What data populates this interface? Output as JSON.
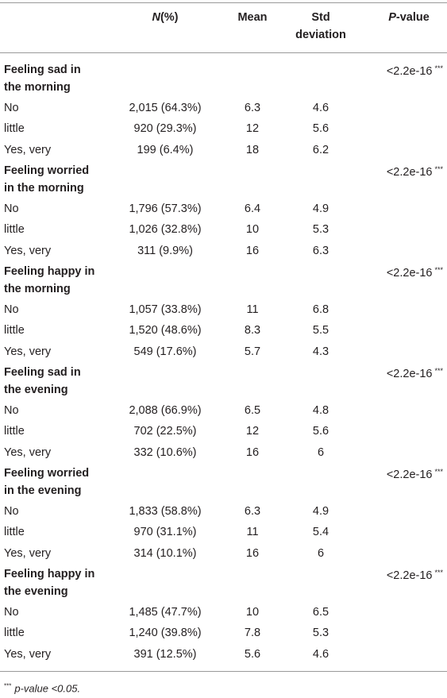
{
  "header": {
    "n": {
      "italic": "N",
      "text": "(%)"
    },
    "mean": "Mean",
    "std": [
      "Std",
      "deviation"
    ],
    "p": {
      "italic": "P",
      "text": "-value"
    }
  },
  "groups": [
    {
      "label": [
        "Feeling sad in",
        "the morning"
      ],
      "p_value": "<2.2e-16",
      "stars": "***",
      "rows": [
        [
          "No",
          "2,015 (64.3%)",
          "6.3",
          "4.6"
        ],
        [
          "little",
          "920 (29.3%)",
          "12",
          "5.6"
        ],
        [
          "Yes, very",
          "199 (6.4%)",
          "18",
          "6.2"
        ]
      ]
    },
    {
      "label": [
        "Feeling worried",
        "in the morning"
      ],
      "p_value": "<2.2e-16",
      "stars": "***",
      "rows": [
        [
          "No",
          "1,796 (57.3%)",
          "6.4",
          "4.9"
        ],
        [
          "little",
          "1,026 (32.8%)",
          "10",
          "5.3"
        ],
        [
          "Yes, very",
          "311 (9.9%)",
          "16",
          "6.3"
        ]
      ]
    },
    {
      "label": [
        "Feeling happy in",
        "the morning"
      ],
      "p_value": "<2.2e-16",
      "stars": "***",
      "rows": [
        [
          "No",
          "1,057 (33.8%)",
          "11",
          "6.8"
        ],
        [
          "little",
          "1,520 (48.6%)",
          "8.3",
          "5.5"
        ],
        [
          "Yes, very",
          "549 (17.6%)",
          "5.7",
          "4.3"
        ]
      ]
    },
    {
      "label": [
        "Feeling sad in",
        "the evening"
      ],
      "p_value": "<2.2e-16",
      "stars": "***",
      "rows": [
        [
          "No",
          "2,088 (66.9%)",
          "6.5",
          "4.8"
        ],
        [
          "little",
          "702 (22.5%)",
          "12",
          "5.6"
        ],
        [
          "Yes, very",
          "332 (10.6%)",
          "16",
          "6"
        ]
      ]
    },
    {
      "label": [
        "Feeling worried",
        "in the evening"
      ],
      "p_value": "<2.2e-16",
      "stars": "***",
      "rows": [
        [
          "No",
          "1,833 (58.8%)",
          "6.3",
          "4.9"
        ],
        [
          "little",
          "970 (31.1%)",
          "11",
          "5.4"
        ],
        [
          "Yes, very",
          "314 (10.1%)",
          "16",
          "6"
        ]
      ]
    },
    {
      "label": [
        "Feeling happy in",
        "the evening"
      ],
      "p_value": "<2.2e-16",
      "stars": "***",
      "rows": [
        [
          "No",
          "1,485 (47.7%)",
          "10",
          "6.5"
        ],
        [
          "little",
          "1,240 (39.8%)",
          "7.8",
          "5.3"
        ],
        [
          "Yes, very",
          "391 (12.5%)",
          "5.6",
          "4.6"
        ]
      ]
    }
  ],
  "footnote": {
    "stars": "***",
    "text": "p-value <0.05."
  }
}
